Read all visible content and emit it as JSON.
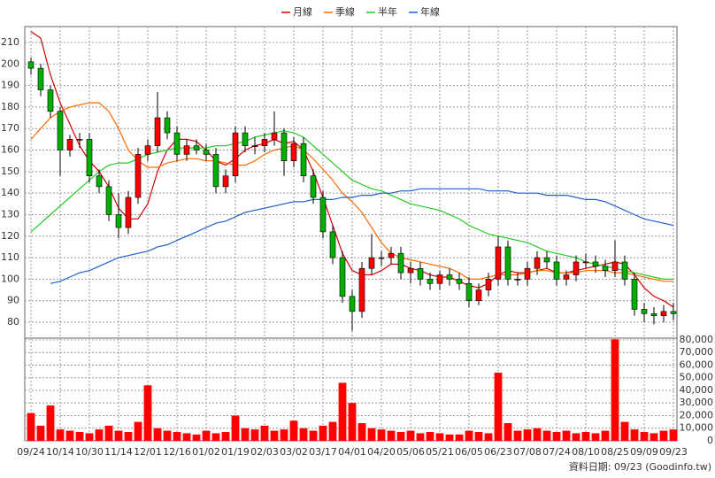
{
  "chart_data": {
    "type": "candlestick",
    "categories": [
      "09/24",
      null,
      null,
      "10/14",
      null,
      null,
      "10/30",
      null,
      null,
      "11/14",
      null,
      null,
      "12/01",
      null,
      null,
      "12/16",
      null,
      null,
      "01/02",
      null,
      null,
      "01/19",
      null,
      null,
      "02/03",
      null,
      null,
      "03/02",
      null,
      null,
      "03/17",
      null,
      null,
      "04/01",
      null,
      null,
      "04/20",
      null,
      null,
      "05/06",
      null,
      null,
      "05/21",
      null,
      null,
      "06/05",
      null,
      null,
      "06/23",
      null,
      null,
      "07/08",
      null,
      null,
      "07/24",
      null,
      null,
      "08/10",
      null,
      null,
      "08/25",
      null,
      null,
      "09/09",
      null,
      null,
      "09/23"
    ],
    "open": [
      201,
      198,
      188,
      178,
      160,
      165,
      165,
      148,
      143,
      130,
      124,
      138,
      158,
      162,
      175,
      168,
      158,
      162,
      160,
      158,
      143,
      148,
      168,
      162,
      162,
      165,
      168,
      155,
      163,
      148,
      138,
      122,
      110,
      92,
      85,
      105,
      110,
      110,
      112,
      103,
      105,
      100,
      98,
      102,
      100,
      98,
      90,
      95,
      100,
      115,
      100,
      100,
      105,
      110,
      108,
      100,
      102,
      108,
      108,
      106,
      104,
      108,
      100,
      86,
      84,
      83,
      85
    ],
    "high": [
      203,
      200,
      190,
      180,
      167,
      168,
      168,
      151,
      146,
      140,
      141,
      161,
      165,
      187,
      178,
      171,
      165,
      165,
      163,
      161,
      151,
      171,
      171,
      166,
      168,
      178,
      170,
      166,
      166,
      151,
      141,
      125,
      113,
      95,
      108,
      121,
      113,
      115,
      115,
      108,
      108,
      103,
      104,
      105,
      103,
      101,
      98,
      103,
      120,
      118,
      103,
      108,
      113,
      113,
      111,
      104,
      111,
      112,
      111,
      109,
      118,
      111,
      103,
      89,
      87,
      88,
      89
    ],
    "low": [
      195,
      185,
      175,
      148,
      157,
      161,
      145,
      140,
      127,
      119,
      121,
      135,
      155,
      159,
      165,
      155,
      155,
      158,
      155,
      140,
      140,
      145,
      159,
      158,
      159,
      162,
      148,
      152,
      145,
      135,
      119,
      107,
      89,
      76,
      82,
      102,
      106,
      107,
      100,
      98,
      97,
      95,
      95,
      97,
      95,
      87,
      88,
      92,
      97,
      97,
      97,
      97,
      102,
      105,
      97,
      97,
      99,
      105,
      103,
      101,
      101,
      97,
      83,
      80,
      79,
      80,
      81
    ],
    "close": [
      198,
      188,
      178,
      160,
      165,
      165,
      148,
      143,
      130,
      124,
      138,
      158,
      162,
      175,
      168,
      158,
      162,
      160,
      158,
      143,
      148,
      168,
      162,
      162,
      165,
      168,
      155,
      163,
      148,
      138,
      122,
      110,
      92,
      85,
      105,
      110,
      110,
      112,
      103,
      105,
      100,
      98,
      102,
      100,
      98,
      90,
      95,
      100,
      115,
      100,
      100,
      105,
      110,
      108,
      100,
      102,
      108,
      108,
      106,
      104,
      108,
      100,
      86,
      84,
      83,
      85,
      84
    ],
    "up_color": "#ff0000",
    "down_color": "#00b000",
    "series": [
      {
        "name": "月線",
        "color": "#d40000",
        "values": [
          215,
          212,
          195,
          182,
          172,
          162,
          155,
          150,
          143,
          133,
          128,
          128,
          135,
          150,
          160,
          165,
          165,
          164,
          160,
          155,
          153,
          156,
          160,
          162,
          163,
          165,
          163,
          164,
          160,
          150,
          138,
          125,
          112,
          104,
          102,
          102,
          104,
          107,
          107,
          105,
          104,
          102,
          101,
          101,
          99,
          97,
          96,
          98,
          102,
          104,
          103,
          103,
          104,
          105,
          103,
          103,
          104,
          105,
          106,
          107,
          108,
          107,
          102,
          96,
          92,
          90,
          87
        ]
      },
      {
        "name": "季線",
        "color": "#ff6a00",
        "values": [
          165,
          170,
          175,
          178,
          180,
          181,
          182,
          182,
          178,
          170,
          160,
          155,
          152,
          152,
          154,
          155,
          156,
          156,
          155,
          155,
          154,
          153,
          153,
          155,
          158,
          160,
          161,
          162,
          160,
          156,
          151,
          146,
          140,
          136,
          131,
          124,
          117,
          112,
          110,
          109,
          108,
          107,
          106,
          105,
          103,
          100,
          100,
          101,
          102,
          102,
          102,
          103,
          104,
          104,
          103,
          103,
          103,
          104,
          104,
          104,
          103,
          103,
          102,
          101,
          100,
          99,
          99
        ]
      },
      {
        "name": "半年",
        "color": "#22cc22",
        "values": [
          122,
          126,
          130,
          134,
          138,
          142,
          146,
          150,
          153,
          154,
          154,
          156,
          158,
          159,
          160,
          161,
          161,
          161,
          161,
          162,
          162,
          163,
          164,
          166,
          167,
          168,
          169,
          168,
          166,
          162,
          158,
          154,
          150,
          146,
          144,
          142,
          141,
          139,
          137,
          135,
          134,
          133,
          132,
          130,
          128,
          125,
          123,
          121,
          120,
          119,
          118,
          117,
          115,
          113,
          112,
          111,
          110,
          108,
          107,
          106,
          105,
          104,
          103,
          102,
          101,
          100,
          100
        ]
      },
      {
        "name": "年線",
        "color": "#1f5fcc",
        "values": [
          null,
          null,
          98,
          99,
          101,
          103,
          104,
          106,
          108,
          110,
          111,
          112,
          113,
          115,
          116,
          118,
          120,
          122,
          124,
          126,
          127,
          129,
          131,
          132,
          133,
          134,
          135,
          136,
          136,
          137,
          137,
          137,
          138,
          138,
          139,
          139,
          140,
          140,
          141,
          141,
          142,
          142,
          142,
          142,
          142,
          142,
          142,
          141,
          141,
          141,
          140,
          140,
          140,
          139,
          139,
          139,
          138,
          137,
          137,
          136,
          134,
          132,
          130,
          128,
          127,
          126,
          125
        ]
      }
    ],
    "ylim": [
      72.6,
      217.4
    ],
    "yticks": [
      80,
      90,
      100,
      110,
      120,
      130,
      140,
      150,
      160,
      170,
      180,
      190,
      200,
      210
    ],
    "grid": true,
    "legend": "top",
    "volume": {
      "color": "#ff0000",
      "values": [
        22000,
        12000,
        28000,
        9000,
        8000,
        7000,
        6000,
        9000,
        12000,
        8000,
        7000,
        15000,
        44000,
        10000,
        8000,
        7000,
        6000,
        5000,
        8000,
        6000,
        7000,
        20000,
        10000,
        9000,
        12000,
        8000,
        9000,
        16000,
        10000,
        8000,
        12000,
        15000,
        46000,
        30000,
        14000,
        10000,
        9000,
        8000,
        7000,
        8000,
        6000,
        7000,
        6000,
        5000,
        5000,
        8000,
        7000,
        6000,
        54000,
        14000,
        8000,
        9000,
        10000,
        8000,
        7000,
        8000,
        6000,
        7000,
        6000,
        8000,
        80500,
        15000,
        9000,
        7000,
        6000,
        8000,
        9000
      ],
      "ylim": [
        0,
        81400
      ],
      "yticks": [
        0,
        {
          "value": 10000,
          "label": "10,000"
        },
        {
          "value": 20000,
          "label": "20,000"
        },
        {
          "value": 30000,
          "label": "30,000"
        },
        {
          "value": 40000,
          "label": "40,000"
        },
        {
          "value": 50000,
          "label": "50,000"
        },
        {
          "value": 60000,
          "label": "60,000"
        },
        {
          "value": 70000,
          "label": "70,000"
        },
        {
          "value": 80000,
          "label": "80,000"
        }
      ]
    },
    "footer": "資料日期: 09/23 (Goodinfo.tw)"
  }
}
